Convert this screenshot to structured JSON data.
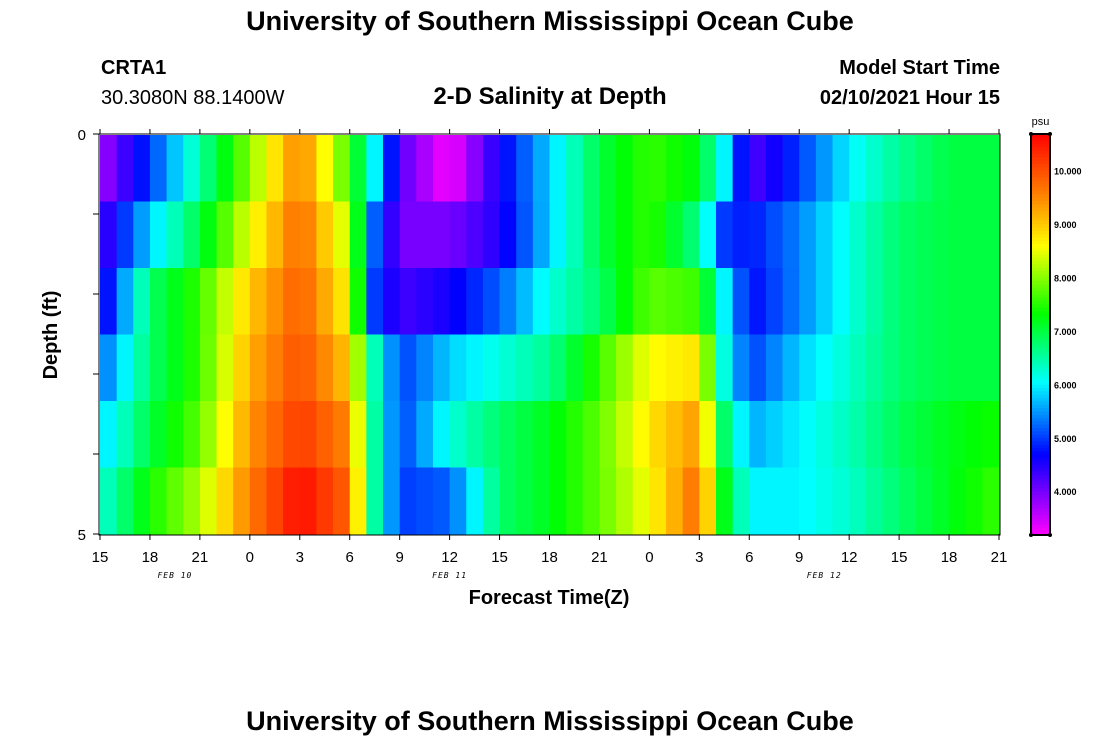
{
  "header": {
    "title": "University of Southern Mississippi Ocean Cube",
    "footer_title": "University of Southern Mississippi Ocean Cube",
    "station": "CRTA1",
    "coordinates": "30.3080N 88.1400W",
    "model_start_label": "Model Start Time",
    "model_start_value": "02/10/2021 Hour 15"
  },
  "chart_data": {
    "type": "heatmap",
    "title": "2-D Salinity at Depth",
    "xlabel": "Forecast Time(Z)",
    "ylabel": "Depth (ft)",
    "x_tick_labels": [
      "15",
      "18",
      "21",
      "0",
      "3",
      "6",
      "9",
      "12",
      "15",
      "18",
      "21",
      "0",
      "3",
      "6",
      "9",
      "12",
      "15",
      "18",
      "21"
    ],
    "x_range_hours": [
      0,
      54
    ],
    "date_labels": [
      {
        "text": "FEB 10",
        "hour": 4.5
      },
      {
        "text": "FEB 11",
        "hour": 21
      },
      {
        "text": "FEB 12",
        "hour": 43.5
      }
    ],
    "y_tick_labels": [
      "0",
      "5"
    ],
    "y_range_ft": [
      0,
      5
    ],
    "depth_layers_ft": [
      0,
      1,
      2,
      3,
      4,
      5
    ],
    "colorbar": {
      "unit": "psu",
      "min": 3.2,
      "max": 10.7,
      "tick_values": [
        4,
        5,
        6,
        7,
        8,
        9,
        10
      ],
      "tick_labels": [
        "4.000",
        "5.000",
        "6.000",
        "7.000",
        "8.000",
        "9.000",
        "10.000"
      ]
    },
    "salinity_keyframes": [
      [
        [
          0,
          3.7
        ],
        [
          3,
          5.0
        ],
        [
          6,
          6.5
        ],
        [
          9,
          8.0
        ],
        [
          12,
          9.6
        ],
        [
          15,
          7.6
        ],
        [
          16.5,
          6.0
        ],
        [
          18,
          4.2
        ],
        [
          21,
          3.2
        ],
        [
          24,
          4.6
        ],
        [
          27,
          5.8
        ],
        [
          30,
          7.0
        ],
        [
          33,
          7.6
        ],
        [
          36,
          7.2
        ],
        [
          37.5,
          6.0
        ],
        [
          39,
          4.2
        ],
        [
          42,
          5.0
        ],
        [
          45,
          6.0
        ],
        [
          48,
          6.6
        ],
        [
          51,
          7.0
        ],
        [
          54,
          7.0
        ]
      ],
      [
        [
          0,
          4.2
        ],
        [
          3,
          5.8
        ],
        [
          6,
          7.0
        ],
        [
          9,
          8.5
        ],
        [
          12,
          9.8
        ],
        [
          15,
          8.2
        ],
        [
          16.5,
          5.2
        ],
        [
          18,
          4.0
        ],
        [
          21,
          4.0
        ],
        [
          24,
          4.5
        ],
        [
          27,
          5.8
        ],
        [
          30,
          7.0
        ],
        [
          33,
          7.6
        ],
        [
          36,
          6.6
        ],
        [
          37.5,
          5.0
        ],
        [
          39,
          4.8
        ],
        [
          42,
          5.4
        ],
        [
          45,
          6.2
        ],
        [
          48,
          6.8
        ],
        [
          51,
          7.0
        ],
        [
          54,
          7.0
        ]
      ],
      [
        [
          0,
          4.4
        ],
        [
          3,
          6.8
        ],
        [
          6,
          7.6
        ],
        [
          9,
          9.0
        ],
        [
          12,
          9.9
        ],
        [
          15,
          8.6
        ],
        [
          16.5,
          5.0
        ],
        [
          18,
          4.3
        ],
        [
          21,
          4.6
        ],
        [
          24,
          5.2
        ],
        [
          27,
          6.2
        ],
        [
          30,
          6.8
        ],
        [
          33,
          7.8
        ],
        [
          36,
          7.6
        ],
        [
          37.5,
          6.0
        ],
        [
          39,
          4.7
        ],
        [
          42,
          5.4
        ],
        [
          45,
          6.2
        ],
        [
          48,
          6.8
        ],
        [
          51,
          7.0
        ],
        [
          54,
          7.0
        ]
      ],
      [
        [
          0,
          5.2
        ],
        [
          3,
          6.8
        ],
        [
          6,
          7.6
        ],
        [
          9,
          9.2
        ],
        [
          12,
          10.0
        ],
        [
          15,
          9.0
        ],
        [
          16.5,
          6.4
        ],
        [
          18,
          5.0
        ],
        [
          21,
          5.8
        ],
        [
          24,
          6.2
        ],
        [
          27,
          6.6
        ],
        [
          30,
          7.6
        ],
        [
          33,
          8.6
        ],
        [
          36,
          8.8
        ],
        [
          37.5,
          6.2
        ],
        [
          39,
          5.0
        ],
        [
          42,
          5.8
        ],
        [
          45,
          6.3
        ],
        [
          48,
          6.8
        ],
        [
          51,
          7.0
        ],
        [
          54,
          7.0
        ]
      ],
      [
        [
          0,
          5.8
        ],
        [
          3,
          7.0
        ],
        [
          6,
          7.8
        ],
        [
          9,
          9.4
        ],
        [
          12,
          10.2
        ],
        [
          15,
          9.5
        ],
        [
          16.5,
          6.5
        ],
        [
          18,
          5.0
        ],
        [
          21,
          6.2
        ],
        [
          24,
          6.8
        ],
        [
          27,
          7.2
        ],
        [
          30,
          7.8
        ],
        [
          33,
          8.8
        ],
        [
          36,
          9.4
        ],
        [
          37.5,
          6.8
        ],
        [
          39,
          5.6
        ],
        [
          42,
          6.0
        ],
        [
          45,
          6.4
        ],
        [
          48,
          6.9
        ],
        [
          51,
          7.2
        ],
        [
          54,
          7.4
        ]
      ],
      [
        [
          0,
          6.2
        ],
        [
          3,
          7.4
        ],
        [
          6,
          8.2
        ],
        [
          9,
          9.6
        ],
        [
          12,
          10.6
        ],
        [
          15,
          9.8
        ],
        [
          16.5,
          6.5
        ],
        [
          18,
          5.0
        ],
        [
          21,
          5.2
        ],
        [
          24,
          6.8
        ],
        [
          27,
          7.2
        ],
        [
          30,
          7.8
        ],
        [
          33,
          8.6
        ],
        [
          36,
          9.8
        ],
        [
          37.5,
          7.2
        ],
        [
          39,
          6.0
        ],
        [
          42,
          6.0
        ],
        [
          45,
          6.3
        ],
        [
          48,
          6.8
        ],
        [
          51,
          7.2
        ],
        [
          54,
          7.6
        ]
      ]
    ]
  }
}
